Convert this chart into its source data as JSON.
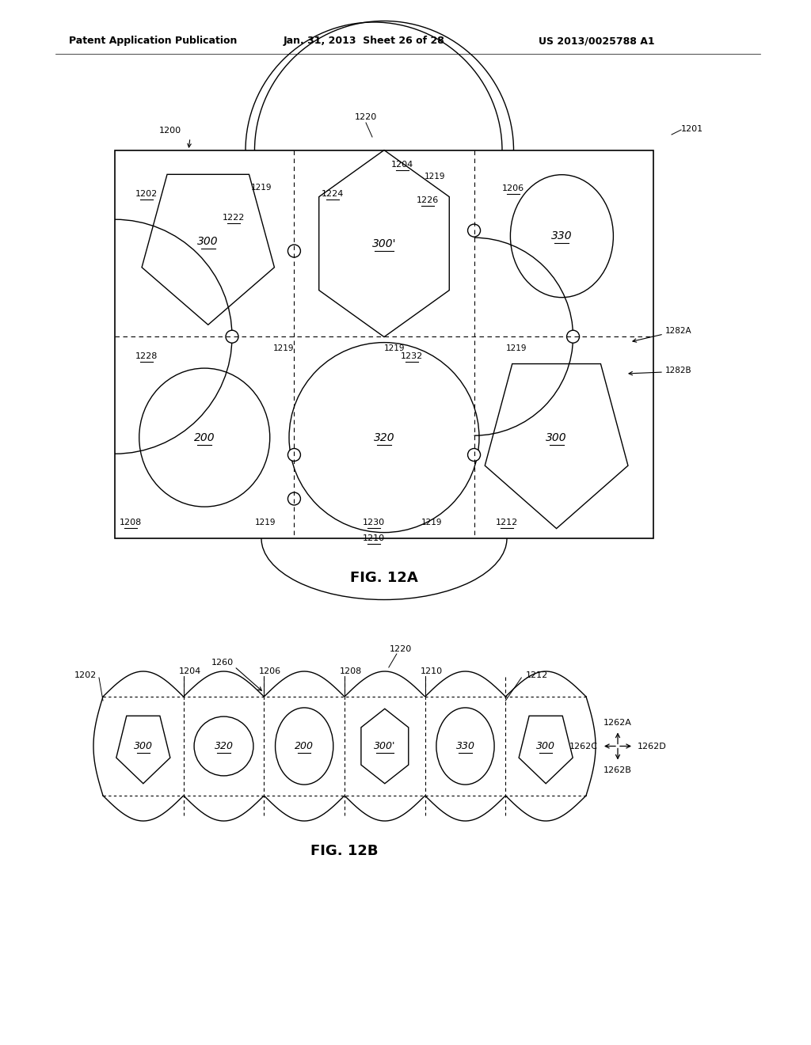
{
  "header_left": "Patent Application Publication",
  "header_mid": "Jan. 31, 2013  Sheet 26 of 28",
  "header_right": "US 2013/0025788 A1",
  "fig_label_A": "FIG. 12A",
  "fig_label_B": "FIG. 12B",
  "bg_color": "#ffffff",
  "line_color": "#000000"
}
